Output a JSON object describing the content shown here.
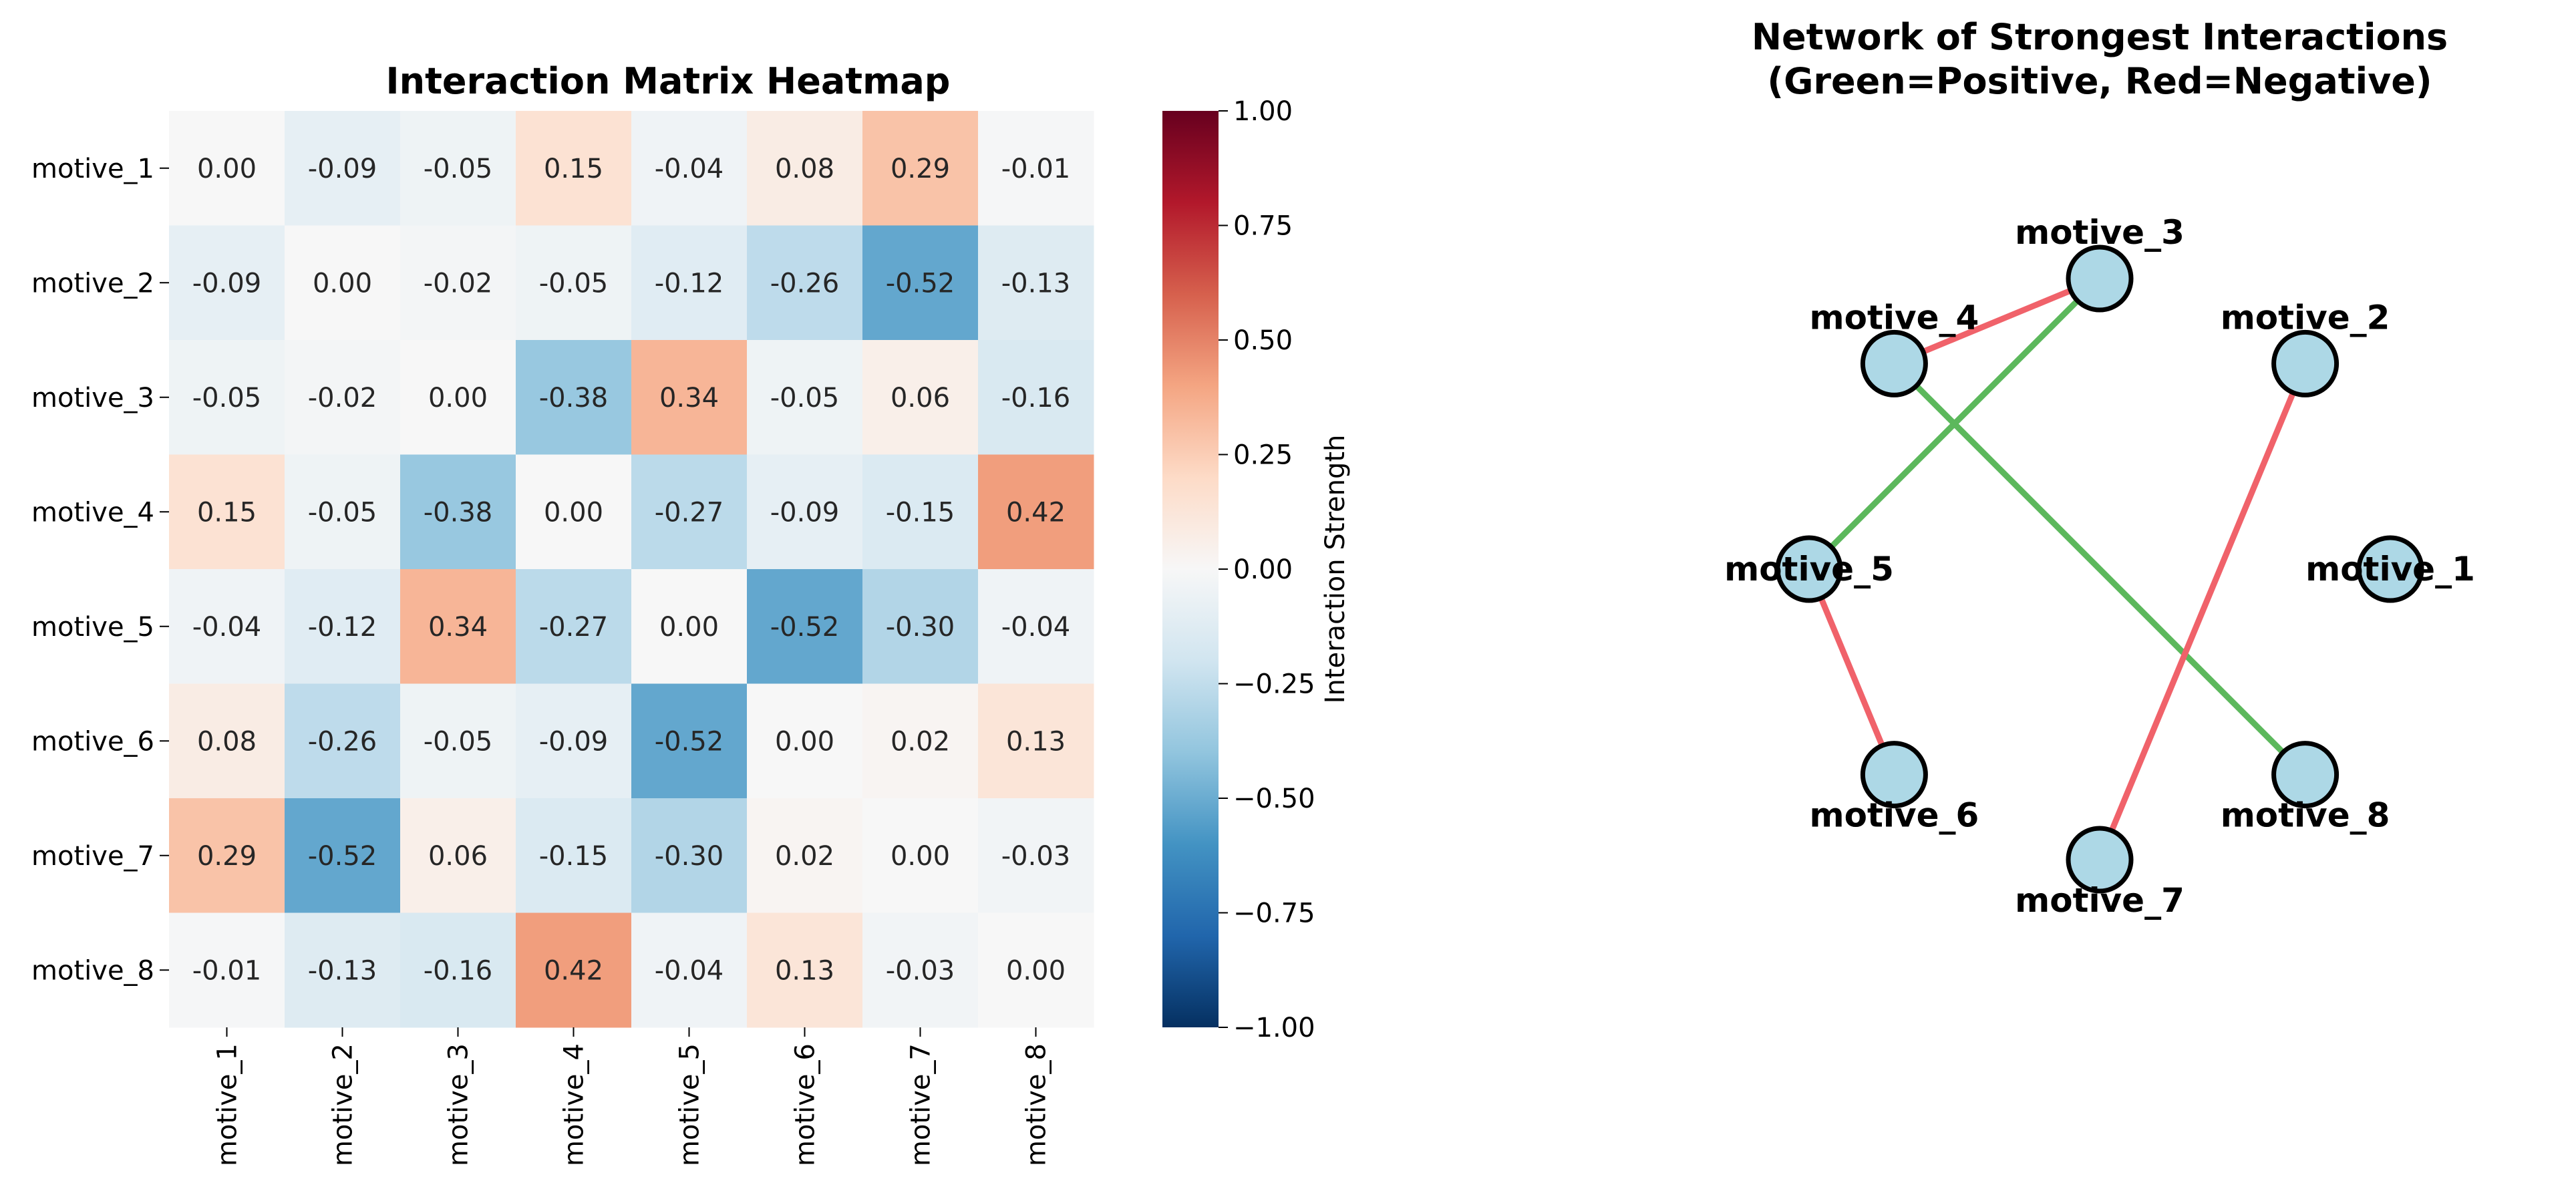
{
  "chart_data": [
    {
      "type": "heatmap",
      "title": "Interaction Matrix Heatmap",
      "rows": [
        "motive_1",
        "motive_2",
        "motive_3",
        "motive_4",
        "motive_5",
        "motive_6",
        "motive_7",
        "motive_8"
      ],
      "cols": [
        "motive_1",
        "motive_2",
        "motive_3",
        "motive_4",
        "motive_5",
        "motive_6",
        "motive_7",
        "motive_8"
      ],
      "values": [
        [
          0.0,
          -0.09,
          -0.05,
          0.15,
          -0.04,
          0.08,
          0.29,
          -0.01
        ],
        [
          -0.09,
          0.0,
          -0.02,
          -0.05,
          -0.12,
          -0.26,
          -0.52,
          -0.13
        ],
        [
          -0.05,
          -0.02,
          0.0,
          -0.38,
          0.34,
          -0.05,
          0.06,
          -0.16
        ],
        [
          0.15,
          -0.05,
          -0.38,
          0.0,
          -0.27,
          -0.09,
          -0.15,
          0.42
        ],
        [
          -0.04,
          -0.12,
          0.34,
          -0.27,
          0.0,
          -0.52,
          -0.3,
          -0.04
        ],
        [
          0.08,
          -0.26,
          -0.05,
          -0.09,
          -0.52,
          0.0,
          0.02,
          0.13
        ],
        [
          0.29,
          -0.52,
          0.06,
          -0.15,
          -0.3,
          0.02,
          0.0,
          -0.03
        ],
        [
          -0.01,
          -0.13,
          -0.16,
          0.42,
          -0.04,
          0.13,
          -0.03,
          0.0
        ]
      ],
      "value_format": "0.00",
      "colormap": "RdBu_r",
      "vmin": -1.0,
      "vmax": 1.0,
      "colorbar": {
        "label": "Interaction Strength",
        "ticks": [
          "1.00",
          "0.75",
          "0.50",
          "0.25",
          "0.00",
          "−0.25",
          "−0.50",
          "−0.75",
          "−1.00"
        ],
        "tick_values": [
          1.0,
          0.75,
          0.5,
          0.25,
          0.0,
          -0.25,
          -0.5,
          -0.75,
          -1.0
        ]
      }
    },
    {
      "type": "network",
      "title_lines": [
        "Network of Strongest Interactions",
        "(Green=Positive, Red=Negative)"
      ],
      "nodes": [
        "motive_1",
        "motive_2",
        "motive_3",
        "motive_4",
        "motive_5",
        "motive_6",
        "motive_7",
        "motive_8"
      ],
      "edges": [
        {
          "source": "motive_3",
          "target": "motive_4",
          "sign": "negative"
        },
        {
          "source": "motive_3",
          "target": "motive_5",
          "sign": "positive"
        },
        {
          "source": "motive_4",
          "target": "motive_8",
          "sign": "positive"
        },
        {
          "source": "motive_2",
          "target": "motive_7",
          "sign": "negative"
        },
        {
          "source": "motive_5",
          "target": "motive_6",
          "sign": "negative"
        }
      ],
      "colors": {
        "positive": "#5cb85c",
        "negative": "#f0626a",
        "node_fill": "#add8e6",
        "node_stroke": "#000000"
      }
    }
  ]
}
